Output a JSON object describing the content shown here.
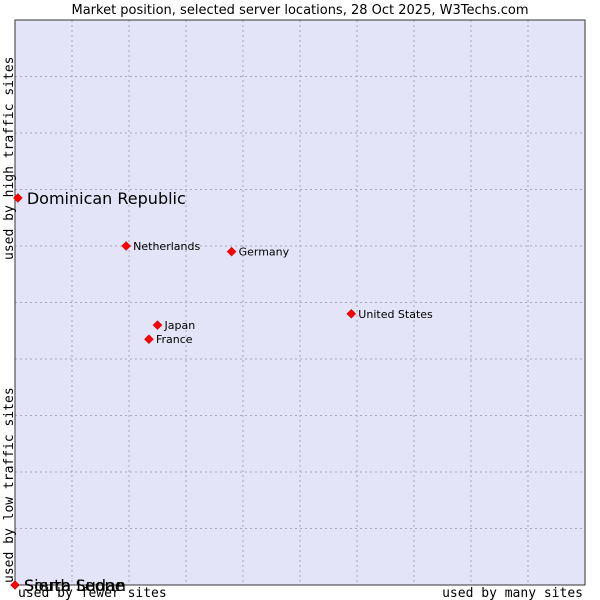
{
  "chart_data": {
    "type": "scatter",
    "title": "Market position, selected server locations, 28 Oct 2025, W3Techs.com",
    "xlabel_low": "used by fewer sites",
    "xlabel_high": "used by many sites",
    "ylabel_low": "used by low traffic sites",
    "ylabel_high": "used by high traffic sites",
    "xlim": [
      0,
      10
    ],
    "ylim": [
      0,
      10
    ],
    "grid": true,
    "background_color": "#e4e4f8",
    "grid_color": "#a8a8b8",
    "marker_color": "#ff0000",
    "points": [
      {
        "label": "Dominican Republic",
        "x": 0.05,
        "y": 6.85,
        "emphasis": true
      },
      {
        "label": "Netherlands",
        "x": 1.95,
        "y": 6.0
      },
      {
        "label": "Germany",
        "x": 3.8,
        "y": 5.9
      },
      {
        "label": "United States",
        "x": 5.9,
        "y": 4.8
      },
      {
        "label": "Japan",
        "x": 2.5,
        "y": 4.6
      },
      {
        "label": "France",
        "x": 2.35,
        "y": 4.35
      },
      {
        "label": "South Sudan",
        "x": 0.0,
        "y": 0.0,
        "emphasis": true
      },
      {
        "label": "Sierra Leone",
        "x": 0.0,
        "y": 0.0,
        "emphasis": true
      }
    ]
  }
}
